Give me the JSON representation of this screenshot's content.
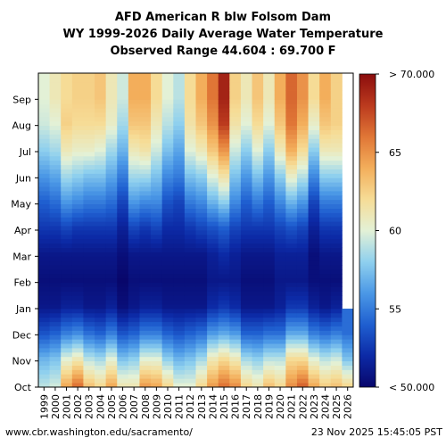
{
  "chart_data": {
    "type": "heatmap",
    "title": "AFD American R blw Folsom Dam",
    "subtitle": "WY 1999-2026 Daily Average Water Temperature",
    "range_text": "Observed Range 44.604 : 69.700 F",
    "x_categories": [
      "1999",
      "2000",
      "2001",
      "2002",
      "2003",
      "2004",
      "2005",
      "2006",
      "2007",
      "2008",
      "2009",
      "2010",
      "2011",
      "2012",
      "2013",
      "2014",
      "2015",
      "2016",
      "2017",
      "2018",
      "2019",
      "2020",
      "2021",
      "2022",
      "2023",
      "2024",
      "2025",
      "2026"
    ],
    "y_categories": [
      "Oct",
      "Nov",
      "Dec",
      "Jan",
      "Feb",
      "Mar",
      "Apr",
      "May",
      "Jun",
      "Jul",
      "Aug",
      "Sep"
    ],
    "colorbar": {
      "min": 50,
      "max": 70,
      "ticks": [
        55,
        60,
        65
      ],
      "min_label": "< 50.000",
      "max_label": "> 70.000",
      "colors": [
        "#08066b",
        "#0c2aa6",
        "#1f5fd0",
        "#4b98e6",
        "#8fd0ee",
        "#e3f1d6",
        "#f6dc96",
        "#f3ae5b",
        "#e07636",
        "#bb3a1e",
        "#8b0d0d"
      ]
    },
    "monthly_temperature_by_year": {
      "1999": [
        59,
        57,
        53.5,
        51,
        50.5,
        51,
        52.5,
        54,
        56,
        58,
        59.5,
        60
      ],
      "2000": [
        59.5,
        57.5,
        54,
        51,
        50.5,
        51,
        52.5,
        54.5,
        56.5,
        58.5,
        60,
        61
      ],
      "2001": [
        64,
        60,
        55,
        51.5,
        50.5,
        51,
        53,
        56,
        58.5,
        61,
        62.5,
        62
      ],
      "2002": [
        66,
        61,
        55.5,
        51.5,
        50.5,
        51,
        52.5,
        55.5,
        58,
        60.5,
        62,
        62.5
      ],
      "2003": [
        63,
        59,
        54.5,
        51,
        50.5,
        51,
        52.5,
        55,
        57.5,
        60.5,
        62,
        62.5
      ],
      "2004": [
        62,
        58.5,
        54,
        51,
        50.5,
        51,
        52.5,
        55,
        57.5,
        60,
        62,
        63
      ],
      "2005": [
        64,
        60,
        55,
        51.5,
        50.5,
        51,
        52.5,
        54.5,
        56.5,
        58.5,
        60.5,
        61
      ],
      "2006": [
        61,
        57.5,
        53.5,
        50.5,
        50,
        50.5,
        51.5,
        53,
        55,
        57,
        58.5,
        59.5
      ],
      "2007": [
        61,
        58,
        54,
        51,
        50.5,
        51,
        53,
        56,
        58.5,
        61,
        63,
        64
      ],
      "2008": [
        64.5,
        60,
        55,
        51.5,
        50.5,
        51,
        52.5,
        55.5,
        58.5,
        61.5,
        63,
        64
      ],
      "2009": [
        64,
        60,
        55,
        51.5,
        50.5,
        51,
        53,
        55.5,
        57.5,
        59.5,
        61,
        62
      ],
      "2010": [
        62,
        58,
        54,
        51,
        50.5,
        51,
        52,
        53.5,
        55.5,
        57.5,
        59,
        60
      ],
      "2011": [
        60,
        57,
        53.5,
        51,
        50.5,
        51,
        52,
        53,
        55,
        56.5,
        58,
        59
      ],
      "2012": [
        60,
        57.5,
        54,
        51,
        50.5,
        51,
        52.5,
        55,
        57.5,
        60,
        61.5,
        62
      ],
      "2013": [
        62,
        58.5,
        54.5,
        51,
        50.5,
        51,
        53,
        55.5,
        58,
        61,
        63,
        64
      ],
      "2014": [
        64.5,
        61,
        56,
        52,
        51,
        51.5,
        53.5,
        57,
        60,
        63,
        65,
        66
      ],
      "2015": [
        66,
        62,
        56.5,
        52.5,
        51,
        52,
        54,
        58,
        61.5,
        65,
        68,
        69
      ],
      "2016": [
        65,
        61,
        56,
        52,
        51,
        51.5,
        53,
        55.5,
        57.5,
        59.5,
        61.5,
        62.5
      ],
      "2017": [
        62,
        58.5,
        54,
        51,
        50.5,
        51,
        52.5,
        54,
        56,
        58,
        60,
        61
      ],
      "2018": [
        61,
        58,
        54,
        51,
        50.5,
        51,
        52.5,
        55,
        57.5,
        60,
        62,
        63
      ],
      "2019": [
        63,
        59,
        54.5,
        51,
        50.5,
        51,
        52.5,
        54,
        56,
        58,
        60,
        61
      ],
      "2020": [
        62,
        59,
        54.5,
        51.5,
        51,
        51.5,
        53,
        55.5,
        58,
        61,
        63,
        64
      ],
      "2021": [
        65,
        62,
        56.5,
        52.5,
        51,
        51.5,
        53.5,
        57,
        60.5,
        64,
        66,
        66.5
      ],
      "2022": [
        66.5,
        62,
        56.5,
        52.5,
        51,
        51.5,
        53,
        56,
        59,
        62,
        64,
        65
      ],
      "2023": [
        64,
        60,
        55,
        51.5,
        50.5,
        50.5,
        51.5,
        53,
        55.5,
        58,
        60.5,
        62
      ],
      "2024": [
        62.5,
        59,
        54.5,
        51,
        50.5,
        51,
        52.5,
        55,
        58,
        61,
        63,
        64
      ],
      "2025": [
        63,
        59.5,
        55,
        51.5,
        50.5,
        51,
        52.5,
        55,
        58,
        61,
        62.5,
        62.5
      ],
      "2026": [
        62,
        57.5,
        54.5
      ]
    },
    "grid": false,
    "legend_placement": "right"
  },
  "footer": {
    "source": "www.cbr.washington.edu/sacramento/",
    "timestamp": "23 Nov 2025 15:45:05 PST"
  }
}
